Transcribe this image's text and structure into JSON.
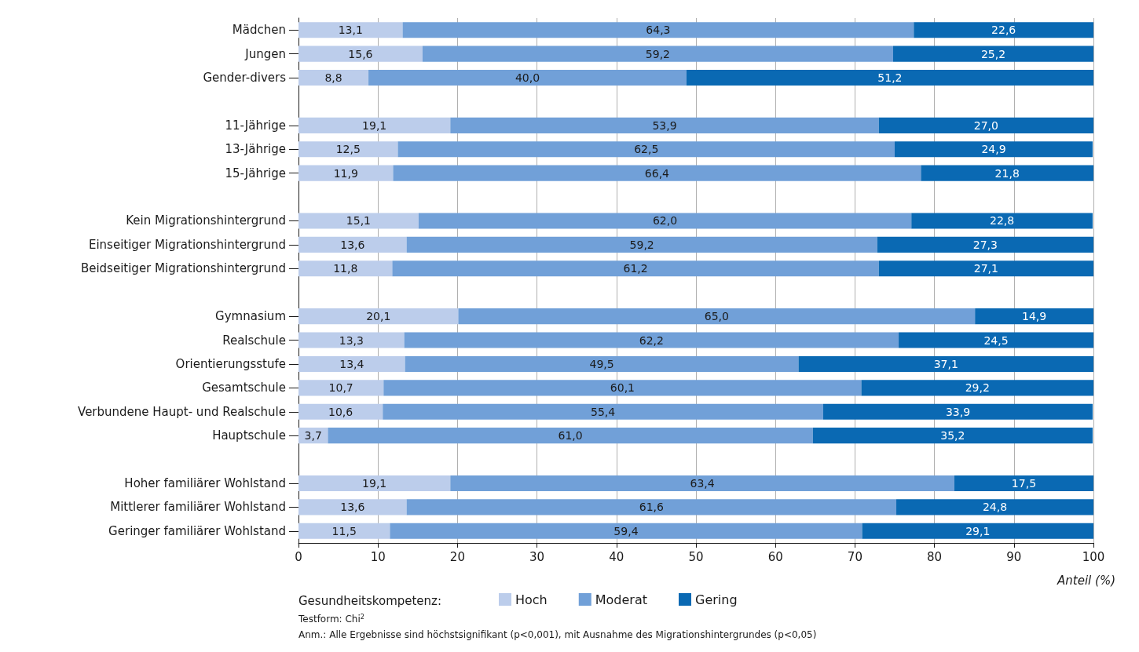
{
  "chart_data": {
    "type": "bar",
    "orientation": "horizontal",
    "stacked": true,
    "categories": [
      "Mädchen",
      "Jungen",
      "Gender-divers",
      null,
      "11-Jährige",
      "13-Jährige",
      "15-Jährige",
      null,
      "Kein Migrationshintergrund",
      "Einseitiger Migrationshintergrund",
      "Beidseitiger Migrationshintergrund",
      null,
      "Gymnasium",
      "Realschule",
      "Orientierungsstufe",
      "Gesamtschule",
      "Verbundene Haupt- und Realschule",
      "Hauptschule",
      null,
      "Hoher familiärer Wohlstand",
      "Mittlerer familiärer Wohlstand",
      "Geringer familiärer Wohlstand"
    ],
    "series": [
      {
        "name": "Hoch",
        "color": "#bccdeb",
        "values": [
          13.1,
          15.6,
          8.8,
          null,
          19.1,
          12.5,
          11.9,
          null,
          15.1,
          13.6,
          11.8,
          null,
          20.1,
          13.3,
          13.4,
          10.7,
          10.6,
          3.7,
          null,
          19.1,
          13.6,
          11.5
        ],
        "value_labels": [
          "13,1",
          "15,6",
          "8,8",
          null,
          "19,1",
          "12,5",
          "11,9",
          null,
          "15,1",
          "13,6",
          "11,8",
          null,
          "20,1",
          "13,3",
          "13,4",
          "10,7",
          "10,6",
          "3,7",
          null,
          "19,1",
          "13,6",
          "11,5"
        ]
      },
      {
        "name": "Moderat",
        "color": "#71a0d8",
        "values": [
          64.3,
          59.2,
          40.0,
          null,
          53.9,
          62.5,
          66.4,
          null,
          62.0,
          59.2,
          61.2,
          null,
          65.0,
          62.2,
          49.5,
          60.1,
          55.4,
          61.0,
          null,
          63.4,
          61.6,
          59.4
        ],
        "value_labels": [
          "64,3",
          "59,2",
          "40,0",
          null,
          "53,9",
          "62,5",
          "66,4",
          null,
          "62,0",
          "59,2",
          "61,2",
          null,
          "65,0",
          "62,2",
          "49,5",
          "60,1",
          "55,4",
          "61,0",
          null,
          "63,4",
          "61,6",
          "59,4"
        ]
      },
      {
        "name": "Gering",
        "color": "#0a69b3",
        "values": [
          22.6,
          25.2,
          51.2,
          null,
          27.0,
          24.9,
          21.8,
          null,
          22.8,
          27.3,
          27.1,
          null,
          14.9,
          24.5,
          37.1,
          29.2,
          33.9,
          35.2,
          null,
          17.5,
          24.8,
          29.1
        ],
        "value_labels": [
          "22,6",
          "25,2",
          "51,2",
          null,
          "27,0",
          "24,9",
          "21,8",
          null,
          "22,8",
          "27,3",
          "27,1",
          null,
          "14,9",
          "24,5",
          "37,1",
          "29,2",
          "33,9",
          "35,2",
          null,
          "17,5",
          "24,8",
          "29,1"
        ]
      }
    ],
    "xlim": [
      0,
      100
    ],
    "xticks": [
      0,
      10,
      20,
      30,
      40,
      50,
      60,
      70,
      80,
      90,
      100
    ],
    "xlabel": "Anteil (%)",
    "legend_title": "Gesundheitskompetenz:",
    "legend": "bottom left",
    "grid": "x",
    "annotations": [
      "Testform: Chi$^{2}$",
      "Anm.: Alle Ergebnisse sind höchstsignifikant (p<0,001), mit Ausnahme des Migrationshintergrundes (p<0,05)"
    ]
  }
}
